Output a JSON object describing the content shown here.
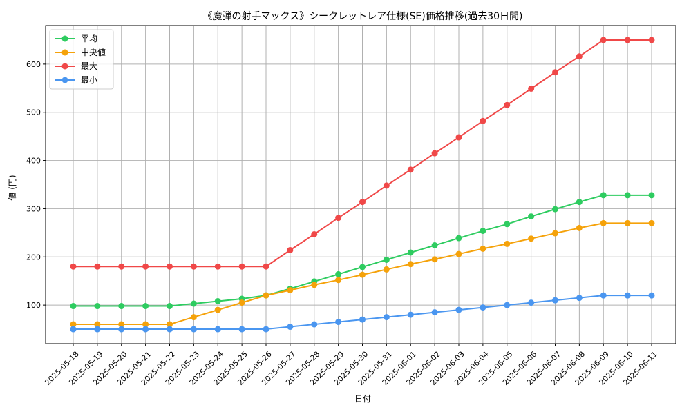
{
  "chart_data": {
    "type": "line",
    "title": "《魔弾の射手マックス》シークレットレア仕様(SE)価格推移(過去30日間)",
    "xlabel": "日付",
    "ylabel": "値 (円)",
    "grid": true,
    "legend_position": "top-left",
    "ylim": [
      20,
      680
    ],
    "yticks": [
      100,
      200,
      300,
      400,
      500,
      600
    ],
    "categories": [
      "2025-05-18",
      "2025-05-19",
      "2025-05-20",
      "2025-05-21",
      "2025-05-22",
      "2025-05-23",
      "2025-05-24",
      "2025-05-25",
      "2025-05-26",
      "2025-05-27",
      "2025-05-28",
      "2025-05-29",
      "2025-05-30",
      "2025-05-31",
      "2025-06-01",
      "2025-06-02",
      "2025-06-03",
      "2025-06-04",
      "2025-06-05",
      "2025-06-06",
      "2025-06-07",
      "2025-06-08",
      "2025-06-09",
      "2025-06-10",
      "2025-06-11"
    ],
    "series": [
      {
        "name": "平均",
        "color": "#2ecc60",
        "values": [
          98,
          98,
          98,
          98,
          98,
          103,
          108,
          113,
          120,
          134,
          149,
          164,
          179,
          194,
          209,
          224,
          239,
          254,
          268,
          284,
          299,
          314,
          328,
          328,
          328
        ]
      },
      {
        "name": "中央値",
        "color": "#f5a20a",
        "values": [
          60,
          60,
          60,
          60,
          60,
          75,
          90,
          105,
          120,
          131,
          142,
          152,
          163,
          174,
          185,
          195,
          206,
          217,
          227,
          238,
          249,
          260,
          270,
          270,
          270
        ]
      },
      {
        "name": "最大",
        "color": "#f04848",
        "values": [
          180,
          180,
          180,
          180,
          180,
          180,
          180,
          180,
          180,
          214,
          247,
          281,
          314,
          348,
          381,
          415,
          448,
          482,
          515,
          549,
          583,
          616,
          650,
          650,
          650
        ]
      },
      {
        "name": "最小",
        "color": "#4a96f0",
        "values": [
          50,
          50,
          50,
          50,
          50,
          50,
          50,
          50,
          50,
          55,
          60,
          65,
          70,
          75,
          80,
          85,
          90,
          95,
          100,
          105,
          110,
          115,
          120,
          120,
          120
        ]
      }
    ]
  }
}
